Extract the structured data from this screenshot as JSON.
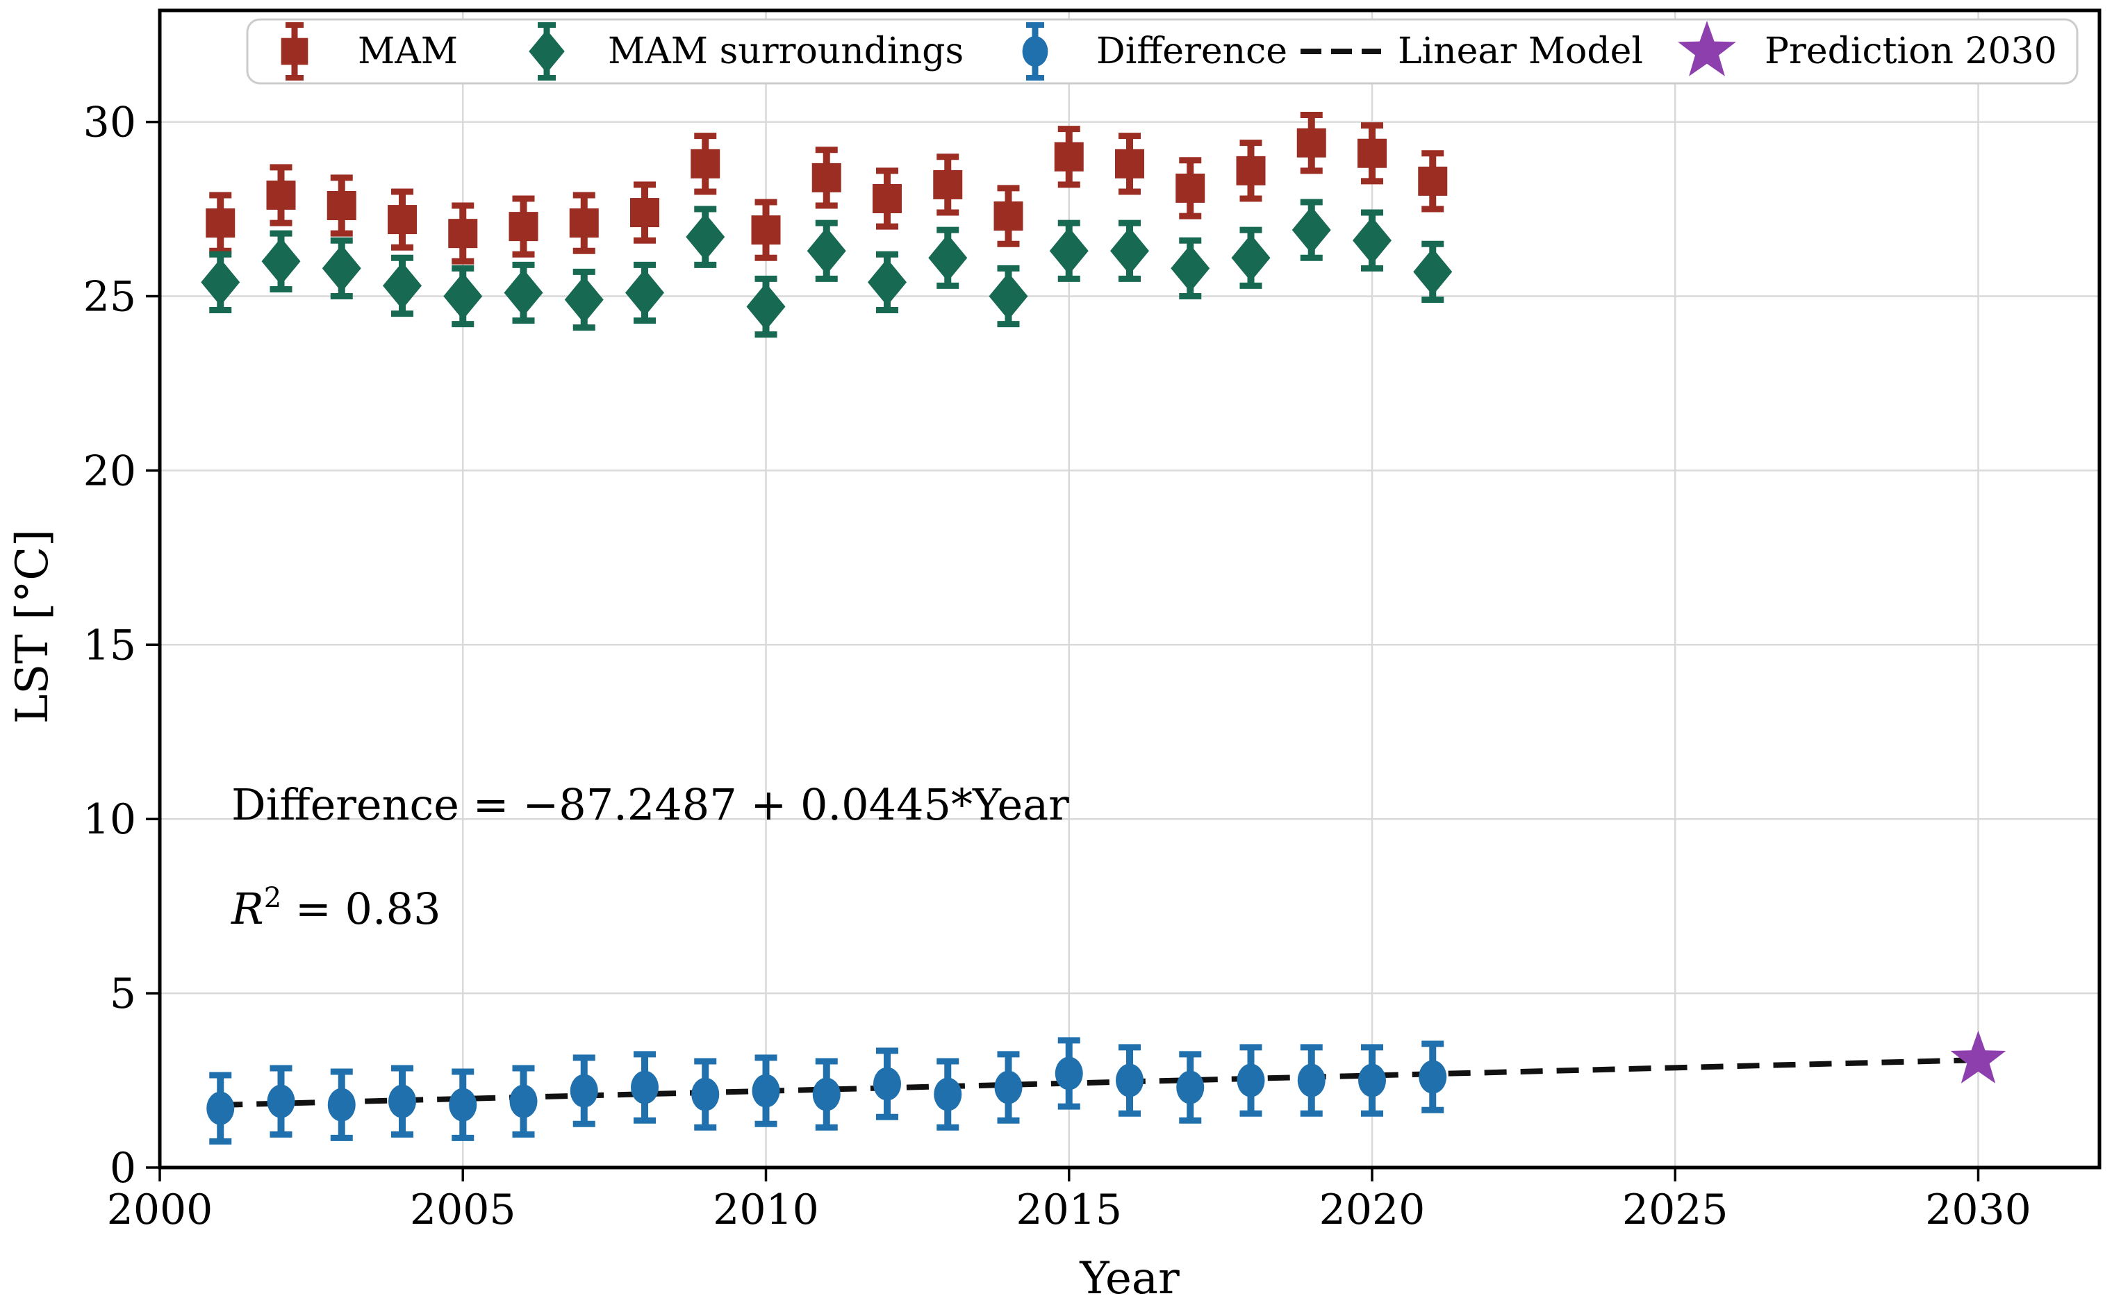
{
  "figure": {
    "background": "#ffffff",
    "annotation_equation": "Difference = −87.2487 + 0.0445*Year",
    "annotation_r2": {
      "base": "R",
      "exponent": "2",
      "rest": " = 0.83"
    }
  },
  "chart_data": {
    "type": "scatter",
    "title": "",
    "xlabel": "Year",
    "ylabel": "LST [°C]",
    "xlim": [
      2000,
      2032
    ],
    "ylim": [
      0,
      33.2
    ],
    "xticks": [
      2000,
      2005,
      2010,
      2015,
      2020,
      2025,
      2030
    ],
    "yticks": [
      0,
      5,
      10,
      15,
      20,
      25,
      30
    ],
    "grid": true,
    "grid_color": "#d9d9d9",
    "legend_position": "upper center",
    "x": [
      2001,
      2002,
      2003,
      2004,
      2005,
      2006,
      2007,
      2008,
      2009,
      2010,
      2011,
      2012,
      2013,
      2014,
      2015,
      2016,
      2017,
      2018,
      2019,
      2020,
      2021
    ],
    "series": [
      {
        "name": "MAM",
        "marker": "square",
        "color": "#9b2d22",
        "yerr": 0.8,
        "values": [
          27.1,
          27.9,
          27.6,
          27.2,
          26.8,
          27.0,
          27.1,
          27.4,
          28.8,
          26.9,
          28.4,
          27.8,
          28.2,
          27.3,
          29.0,
          28.8,
          28.1,
          28.6,
          29.4,
          29.1,
          28.3
        ]
      },
      {
        "name": "MAM surroundings",
        "marker": "diamond",
        "color": "#176952",
        "yerr": 0.8,
        "values": [
          25.4,
          26.0,
          25.8,
          25.3,
          25.0,
          25.1,
          24.9,
          25.1,
          26.7,
          24.7,
          26.3,
          25.4,
          26.1,
          25.0,
          26.3,
          26.3,
          25.8,
          26.1,
          26.9,
          26.6,
          25.7
        ]
      },
      {
        "name": "Difference",
        "marker": "circle",
        "color": "#1f70ad",
        "yerr": 0.95,
        "values": [
          1.7,
          1.9,
          1.8,
          1.9,
          1.8,
          1.9,
          2.2,
          2.3,
          2.1,
          2.2,
          2.1,
          2.4,
          2.1,
          2.3,
          2.7,
          2.5,
          2.3,
          2.5,
          2.5,
          2.5,
          2.6
        ]
      }
    ],
    "linear_model": {
      "label": "Linear Model",
      "style": "dashed",
      "color": "#111111",
      "intercept": -87.2487,
      "slope": 0.0445,
      "r_squared": 0.83,
      "x_start": 2001,
      "x_end": 2030
    },
    "prediction": {
      "label": "Prediction 2030",
      "marker": "star",
      "color": "#8d3fad",
      "year": 2030,
      "value": 3.09
    }
  }
}
